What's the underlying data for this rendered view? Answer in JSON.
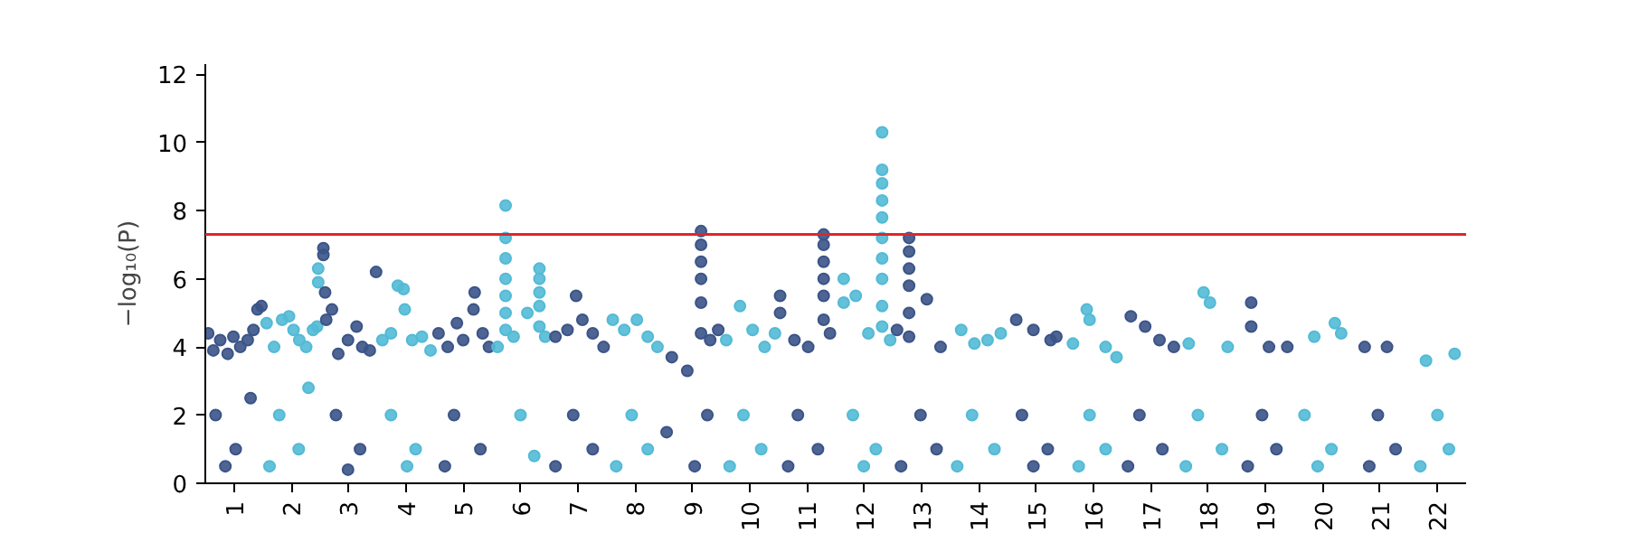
{
  "chart_data": {
    "type": "scatter",
    "ylabel": "−log₁₀(P)",
    "marker": "circle",
    "grid": false,
    "xlim": [
      0.5,
      22.5
    ],
    "ylim": [
      0,
      12.3
    ],
    "yticks": [
      0,
      2,
      4,
      6,
      8,
      10,
      12
    ],
    "xticks": [
      1,
      2,
      3,
      4,
      5,
      6,
      7,
      8,
      9,
      10,
      11,
      12,
      13,
      14,
      15,
      16,
      17,
      18,
      19,
      20,
      21,
      22
    ],
    "ref_lines": [
      {
        "axis": "y",
        "value": 7.3,
        "color": "#e0262b"
      }
    ],
    "series": [
      {
        "color": "#3b5488",
        "x": [
          0.55,
          0.64,
          0.76,
          0.89,
          0.99,
          1.11,
          1.24,
          1.34,
          1.41,
          1.48,
          0.68,
          1.03,
          1.29,
          0.85
        ],
        "values": [
          4.4,
          3.9,
          4.2,
          3.8,
          4.3,
          4.0,
          4.2,
          4.5,
          5.1,
          5.2,
          2,
          1,
          2.5,
          0.5
        ]
      },
      {
        "color": "#53bad6",
        "x": [
          1.57,
          1.7,
          1.84,
          1.96,
          2.04,
          2.14,
          2.26,
          2.38,
          2.45,
          2.47,
          2.47,
          1.79,
          2.13,
          2.3,
          1.62
        ],
        "values": [
          4.7,
          4.0,
          4.8,
          4.9,
          4.5,
          4.2,
          4.0,
          4.5,
          4.6,
          6.3,
          5.9,
          2,
          1,
          2.8,
          0.5
        ]
      },
      {
        "color": "#3b5488",
        "x": [
          2.56,
          2.56,
          2.59,
          2.61,
          2.71,
          2.82,
          2.99,
          3.14,
          3.24,
          3.37,
          3.48,
          2.78,
          3.2,
          2.99
        ],
        "values": [
          6.9,
          6.7,
          5.6,
          4.8,
          5.1,
          3.8,
          4.2,
          4.6,
          4.0,
          3.9,
          6.2,
          2,
          1,
          0.4
        ]
      },
      {
        "color": "#53bad6",
        "x": [
          3.59,
          3.74,
          3.86,
          3.96,
          3.98,
          4.11,
          4.28,
          4.43,
          3.74,
          4.17,
          4.02
        ],
        "values": [
          4.2,
          4.4,
          5.8,
          5.7,
          5.1,
          4.2,
          4.3,
          3.9,
          2,
          1,
          0.5
        ]
      },
      {
        "color": "#3b5488",
        "x": [
          4.57,
          4.73,
          4.89,
          5.0,
          5.18,
          5.2,
          5.34,
          5.45,
          4.84,
          5.3,
          4.68
        ],
        "values": [
          4.4,
          4.0,
          4.7,
          4.2,
          5.1,
          5.6,
          4.4,
          4.0,
          2,
          1,
          0.5
        ]
      },
      {
        "color": "#53bad6",
        "x": [
          5.74,
          5.74,
          5.74,
          5.74,
          5.74,
          5.74,
          5.74,
          6.33,
          6.33,
          6.33,
          6.33,
          6.33,
          5.6,
          5.88,
          6.12,
          6.43,
          6.0,
          6.24
        ],
        "values": [
          8.15,
          7.2,
          6.6,
          6.0,
          5.5,
          5.0,
          4.5,
          6.3,
          6.0,
          5.6,
          5.2,
          4.6,
          4.0,
          4.3,
          5.0,
          4.3,
          2,
          0.8
        ]
      },
      {
        "color": "#3b5488",
        "x": [
          6.61,
          6.82,
          6.97,
          7.08,
          7.26,
          7.45,
          6.92,
          7.26,
          6.61
        ],
        "values": [
          4.3,
          4.5,
          5.5,
          4.8,
          4.4,
          4.0,
          2,
          1,
          0.5
        ]
      },
      {
        "color": "#53bad6",
        "x": [
          7.61,
          7.81,
          8.03,
          8.22,
          8.39,
          7.94,
          8.22,
          7.67
        ],
        "values": [
          4.8,
          4.5,
          4.8,
          4.3,
          4.0,
          2,
          1,
          0.5
        ]
      },
      {
        "color": "#3b5488",
        "x": [
          9.15,
          9.15,
          9.15,
          9.15,
          9.15,
          9.15,
          8.64,
          8.91,
          9.31,
          9.45,
          8.55,
          9.26,
          9.04
        ],
        "values": [
          7.4,
          7.0,
          6.5,
          6.0,
          5.3,
          4.4,
          3.7,
          3.3,
          4.2,
          4.5,
          1.5,
          2,
          0.5
        ]
      },
      {
        "color": "#53bad6",
        "x": [
          9.59,
          9.83,
          10.05,
          10.26,
          10.44,
          9.89,
          10.2,
          9.65
        ],
        "values": [
          4.2,
          5.2,
          4.5,
          4.0,
          4.4,
          2,
          1,
          0.5
        ]
      },
      {
        "color": "#3b5488",
        "x": [
          10.53,
          10.53,
          11.29,
          11.29,
          11.29,
          11.29,
          11.29,
          11.29,
          10.78,
          11.02,
          11.4,
          10.84,
          11.19,
          10.67
        ],
        "values": [
          5.5,
          5.0,
          7.3,
          7.0,
          6.5,
          6.0,
          5.5,
          4.8,
          4.2,
          4.0,
          4.4,
          2,
          1,
          0.5
        ]
      },
      {
        "color": "#53bad6",
        "x": [
          12.31,
          12.31,
          12.31,
          12.31,
          12.31,
          12.31,
          12.31,
          12.31,
          12.31,
          12.31,
          11.64,
          11.64,
          11.85,
          12.07,
          12.45,
          11.8,
          12.2,
          11.99
        ],
        "values": [
          10.3,
          9.2,
          8.8,
          8.3,
          7.8,
          7.2,
          6.6,
          6.0,
          5.2,
          4.6,
          6.0,
          5.3,
          5.5,
          4.4,
          4.2,
          2,
          1,
          0.5
        ]
      },
      {
        "color": "#3b5488",
        "x": [
          12.78,
          12.78,
          12.78,
          12.78,
          12.78,
          12.78,
          12.57,
          13.09,
          13.33,
          12.98,
          13.26,
          12.64
        ],
        "values": [
          7.2,
          6.8,
          6.3,
          5.8,
          5.0,
          4.3,
          4.5,
          5.4,
          4.0,
          2,
          1,
          0.5
        ]
      },
      {
        "color": "#53bad6",
        "x": [
          13.69,
          13.92,
          14.15,
          14.38,
          13.88,
          14.27,
          13.62
        ],
        "values": [
          4.5,
          4.1,
          4.2,
          4.4,
          2,
          1,
          0.5
        ]
      },
      {
        "color": "#3b5488",
        "x": [
          14.65,
          14.95,
          15.25,
          15.35,
          14.75,
          15.2,
          14.95
        ],
        "values": [
          4.8,
          4.5,
          4.2,
          4.3,
          2,
          1,
          0.5
        ]
      },
      {
        "color": "#53bad6",
        "x": [
          15.64,
          15.88,
          15.93,
          16.21,
          16.4,
          15.93,
          16.21,
          15.74
        ],
        "values": [
          4.1,
          5.1,
          4.8,
          4.0,
          3.7,
          2,
          1,
          0.5
        ]
      },
      {
        "color": "#3b5488",
        "x": [
          16.65,
          16.9,
          17.15,
          17.4,
          16.8,
          17.2,
          16.6
        ],
        "values": [
          4.9,
          4.6,
          4.2,
          4.0,
          2,
          1,
          0.5
        ]
      },
      {
        "color": "#53bad6",
        "x": [
          17.66,
          17.92,
          18.03,
          18.34,
          17.82,
          18.24,
          17.61
        ],
        "values": [
          4.1,
          5.6,
          5.3,
          4.0,
          2,
          1,
          0.5
        ]
      },
      {
        "color": "#3b5488",
        "x": [
          18.75,
          18.75,
          19.06,
          19.38,
          18.94,
          19.19,
          18.69
        ],
        "values": [
          5.3,
          4.6,
          4.0,
          4.0,
          2,
          1,
          0.5
        ]
      },
      {
        "color": "#53bad6",
        "x": [
          19.85,
          20.21,
          20.32,
          19.68,
          20.15,
          19.91
        ],
        "values": [
          4.3,
          4.7,
          4.4,
          2,
          1,
          0.5
        ]
      },
      {
        "color": "#3b5488",
        "x": [
          20.73,
          21.12,
          20.96,
          21.27,
          20.81
        ],
        "values": [
          4.0,
          4.0,
          2,
          1,
          0.5
        ]
      },
      {
        "color": "#53bad6",
        "x": [
          21.8,
          22.3,
          22.0,
          22.2,
          21.7
        ],
        "values": [
          3.6,
          3.8,
          2,
          1,
          0.5
        ]
      }
    ]
  }
}
